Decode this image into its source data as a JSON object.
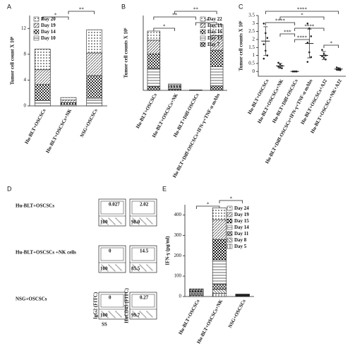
{
  "chart_data": [
    {
      "type": "stacked-bar",
      "title": "A",
      "ylabel": "Tumor cell count X 10⁶",
      "categories": [
        "Hu-BLT+OSCSCs",
        "Hu-BLT+OSCSCs+NK",
        "NSG+OSCSCs"
      ],
      "series": [
        {
          "name": "Day 20",
          "color": "#444444",
          "values": [
            3.2,
            0.4,
            3.6
          ]
        },
        {
          "name": "Day 19",
          "color": "#555555",
          "values": [
            2.3,
            0.4,
            3.5
          ]
        },
        {
          "name": "Day 14",
          "color": "#333333",
          "values": [
            2.5,
            0.3,
            3.5
          ]
        },
        {
          "name": "Day 10",
          "color": "#222222",
          "values": [
            0.8,
            0.2,
            1.2
          ]
        }
      ],
      "ylim": [
        0,
        14
      ],
      "yticks": [
        0,
        4,
        8,
        12
      ],
      "legend": "upper-left",
      "brackets": [
        {
          "label": "**",
          "pair": [
            1,
            2
          ]
        },
        {
          "label": "*",
          "pair": [
            0,
            1
          ]
        }
      ]
    },
    {
      "type": "stacked-bar",
      "title": "B",
      "ylabel": "Tumor cell counts X 10⁶",
      "categories": [
        "Hu-BLT+OSCSCs",
        "Hu-BLT+OSCSCs+NK",
        "Hu-BLT+Diff-OSCSCs",
        "Hu-BLT+Diff-OSCSCs+IFN-γ+TNF-α mAbs"
      ],
      "series": [
        {
          "name": "Day 22",
          "color": "#555555",
          "values": [
            1.0,
            0.1,
            0.01,
            1.2
          ]
        },
        {
          "name": "Day 19",
          "color": "#444444",
          "values": [
            1.5,
            0.15,
            0.01,
            1.6
          ]
        },
        {
          "name": "Day 16",
          "color": "#333333",
          "values": [
            1.6,
            0.15,
            0.01,
            1.8
          ]
        },
        {
          "name": "Day 13",
          "color": "#444444",
          "values": [
            2.0,
            0.2,
            0.01,
            2.1
          ]
        },
        {
          "name": "Day 7",
          "color": "#111111",
          "values": [
            0.4,
            0.1,
            0.01,
            0.5
          ]
        }
      ],
      "ylim": [
        0,
        8.2
      ],
      "legend": "upper-right",
      "brackets": [
        {
          "label": "**",
          "pair": [
            1,
            3
          ]
        },
        {
          "label": "**",
          "pair": [
            0,
            2
          ]
        },
        {
          "label": "**",
          "pair": [
            2,
            3
          ]
        },
        {
          "label": "*",
          "pair": [
            0,
            1
          ]
        }
      ]
    },
    {
      "type": "dot-plot",
      "title": "C",
      "ylabel": "Tumor cell counts X 10⁶",
      "categories": [
        "Hu-BLT+OSCSCs",
        "Hu-BLT+OSCSCs+NK",
        "Hu-BLT+Diff-OSCSCs",
        "Hu-BLT+Diff-OSCSCs+IFN-γ+TNF-α mAbs",
        "Hu-BLT+OSCSCs+AJ2",
        "Hu-BLT+OSCSCs+NK+AJ2"
      ],
      "means": [
        1.9,
        0.35,
        0,
        1.75,
        1.0,
        0.15
      ],
      "errors": [
        0.9,
        0.15,
        0,
        0.9,
        0.25,
        0.08
      ],
      "points": [
        [
          3.0,
          2.4,
          2.1,
          1.7,
          1.3,
          1.0,
          0.8
        ],
        [
          0.55,
          0.45,
          0.35,
          0.3,
          0.25,
          0.2
        ],
        [
          0,
          0,
          0,
          0,
          0,
          0
        ],
        [
          3.0,
          2.7,
          2.2,
          1.8,
          1.2,
          0.9,
          0.6
        ],
        [
          1.35,
          1.1,
          1.0,
          0.95,
          0.85,
          0.75
        ],
        [
          0.25,
          0.2,
          0.15,
          0.12,
          0.1,
          0.08
        ]
      ],
      "color": "#222222",
      "ylim": [
        -0.3,
        3.5
      ],
      "yticks": [
        0,
        0.5,
        1,
        1.5,
        2,
        2.5,
        3,
        3.5
      ],
      "brackets": [
        {
          "label": "****",
          "pair": [
            0,
            5
          ]
        },
        {
          "label": "*",
          "pair": [
            1,
            4
          ]
        },
        {
          "label": "****",
          "pair": [
            0,
            2
          ]
        },
        {
          "label": "****",
          "pair": [
            2,
            4
          ]
        },
        {
          "label": "***",
          "pair": [
            1,
            2
          ]
        },
        {
          "label": "****",
          "pair": [
            2,
            3
          ]
        },
        {
          "label": "*",
          "pair": [
            4,
            5
          ]
        }
      ]
    },
    {
      "type": "stacked-bar",
      "title": "E",
      "ylabel": "IFN-γ (pg/ml)",
      "categories": [
        "Hu-BLT+OSCSCs",
        "Hu-BLT+OSCSCs+NK",
        "NSG+OSCSCs"
      ],
      "series": [
        {
          "name": "Day 24",
          "color": "#444444",
          "values": [
            5,
            60,
            1
          ]
        },
        {
          "name": "Day 19",
          "color": "#555555",
          "values": [
            5,
            95,
            2
          ]
        },
        {
          "name": "Day 15",
          "color": "#111111",
          "values": [
            5,
            100,
            1
          ]
        },
        {
          "name": "Day 14",
          "color": "#444444",
          "values": [
            8,
            120,
            2
          ]
        },
        {
          "name": "Day 11",
          "color": "#333333",
          "values": [
            5,
            25,
            2
          ]
        },
        {
          "name": "Day 8",
          "color": "#555555",
          "values": [
            5,
            20,
            2
          ]
        },
        {
          "name": "Day 5",
          "color": "#333333",
          "values": [
            5,
            15,
            2
          ]
        }
      ],
      "ylim": [
        0,
        450
      ],
      "yticks": [
        0,
        100,
        200,
        300,
        400
      ],
      "legend": "upper-right",
      "brackets": [
        {
          "label": "*",
          "pair": [
            1,
            2
          ]
        },
        {
          "label": "*",
          "pair": [
            0,
            1
          ]
        }
      ]
    }
  ],
  "flow": {
    "title": "D",
    "x_label": "SS",
    "y_labels": [
      "IgG2 (FITC)",
      "HuCD45 (FITC)"
    ],
    "rows": [
      {
        "label": "Hu-BLT+OSCSCs",
        "plots": [
          [
            "0.027",
            "100"
          ],
          [
            "2.02",
            "98.0"
          ]
        ]
      },
      {
        "label": "Hu-BLT+OSCSCs +NK cells",
        "plots": [
          [
            "0",
            "100"
          ],
          [
            "14.5",
            "85.5"
          ]
        ]
      },
      {
        "label": "NSG+OSCSCs",
        "plots": [
          [
            "0",
            "100"
          ],
          [
            "0.27",
            "99.7"
          ]
        ]
      }
    ]
  }
}
